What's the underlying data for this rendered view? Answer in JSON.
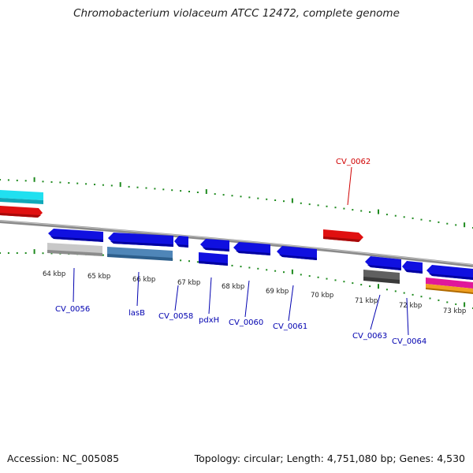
{
  "title": "Chromobacterium violaceum ATCC 12472, complete genome",
  "footer": {
    "accession": "Accession: NC_005085",
    "stats": "Topology: circular; Length: 4,751,080 bp; Genes: 4,530"
  },
  "colors": {
    "backbone": "#8a8a8a",
    "tick": "#1e8a1e",
    "label_strand_plus": "#d00000",
    "label_strand_minus": "#0000b0",
    "gene_blue": "#1010e0",
    "gene_red": "#e01010",
    "gene_cyan": "#20e0f0",
    "gene_gray_light": "#c8c8c8",
    "gene_gray_dark": "#606060",
    "gene_steelblue": "#4f86b8",
    "gene_magenta": "#e0189a",
    "gene_orange": "#f0a020"
  },
  "scale_labels": [
    "64 kbp",
    "65 kbp",
    "66 kbp",
    "67 kbp",
    "68 kbp",
    "69 kbp",
    "70 kbp",
    "71 kbp",
    "72 kbp",
    "73 kbp"
  ],
  "gene_labels": [
    {
      "text": "CV_0062",
      "strand": "plus"
    },
    {
      "text": "CV_0056",
      "strand": "minus"
    },
    {
      "text": "lasB",
      "strand": "minus"
    },
    {
      "text": "CV_0058",
      "strand": "minus"
    },
    {
      "text": "pdxH",
      "strand": "minus"
    },
    {
      "text": "CV_0060",
      "strand": "minus"
    },
    {
      "text": "CV_0061",
      "strand": "minus"
    },
    {
      "text": "CV_0063",
      "strand": "minus"
    },
    {
      "text": "CV_0064",
      "strand": "minus"
    }
  ]
}
